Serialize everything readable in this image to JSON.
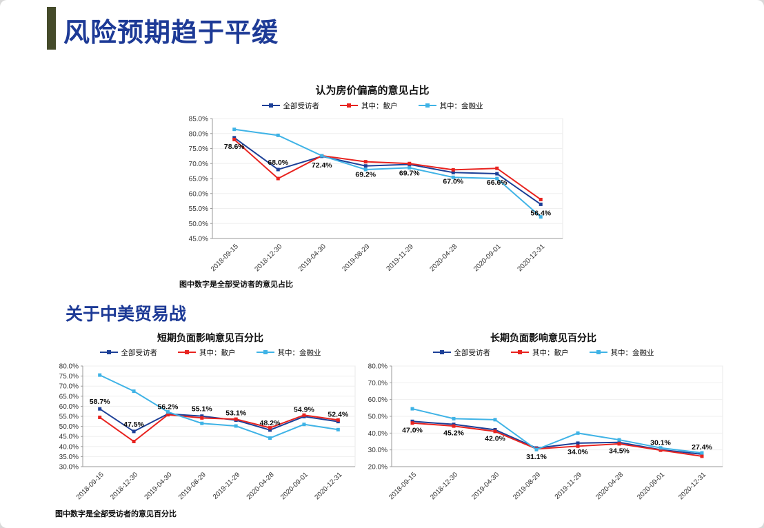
{
  "slide": {
    "title": "风险预期趋于平缓",
    "section_heading": "关于中美贸易战",
    "accent_color": "#454b2a",
    "title_color": "#1d3a96"
  },
  "chart_data": [
    {
      "type": "line",
      "title": "认为房价偏高的意见占比",
      "footnote": "图中数字是全部受访者的意见占比",
      "categories": [
        "2018-09-15",
        "2018-12-30",
        "2019-04-30",
        "2019-08-29",
        "2019-11-29",
        "2020-04-28",
        "2020-09-01",
        "2020-12-31"
      ],
      "ylim": [
        45,
        85
      ],
      "ystep": 5,
      "tick_format": "percent_1dp",
      "grid": false,
      "legend_position": "top",
      "series": [
        {
          "name": "全部受访者",
          "color": "#1c3f97",
          "values": [
            78.6,
            68.0,
            72.4,
            69.2,
            69.7,
            67.0,
            66.6,
            56.4
          ]
        },
        {
          "name": "其中：散户",
          "color": "#e8231f",
          "values": [
            78.0,
            65.0,
            72.6,
            70.6,
            70.0,
            67.9,
            68.4,
            58.0
          ]
        },
        {
          "name": "其中：金融业",
          "color": "#3fb3e6",
          "values": [
            81.4,
            79.4,
            72.6,
            68.0,
            68.6,
            65.4,
            65.0,
            52.2
          ]
        }
      ],
      "labels": [
        "78.6%",
        "68.0%",
        "72.4%",
        "69.2%",
        "69.7%",
        "67.0%",
        "66.6%",
        "56.4%"
      ]
    },
    {
      "type": "line",
      "title": "短期负面影响意见百分比",
      "footnote": "图中数字是全部受访者的意见百分比",
      "categories": [
        "2018-09-15",
        "2018-12-30",
        "2019-04-30",
        "2019-08-29",
        "2019-11-29",
        "2020-04-28",
        "2020-09-01",
        "2020-12-31"
      ],
      "ylim": [
        30,
        80
      ],
      "ystep": 5,
      "tick_format": "percent_1dp",
      "grid": false,
      "legend_position": "top",
      "series": [
        {
          "name": "全部受访者",
          "color": "#1c3f97",
          "values": [
            58.7,
            47.5,
            56.2,
            55.1,
            53.1,
            48.2,
            54.9,
            52.4
          ]
        },
        {
          "name": "其中：散户",
          "color": "#e8231f",
          "values": [
            54.5,
            42.5,
            55.8,
            54.2,
            53.6,
            49.3,
            55.6,
            53.2
          ]
        },
        {
          "name": "其中：金融业",
          "color": "#3fb3e6",
          "values": [
            75.5,
            67.5,
            57.2,
            51.5,
            50.2,
            44.2,
            51.0,
            48.4
          ]
        }
      ],
      "labels": [
        "58.7%",
        "47.5%",
        "56.2%",
        "55.1%",
        "53.1%",
        "48.2%",
        "54.9%",
        "52.4%"
      ]
    },
    {
      "type": "line",
      "title": "长期负面影响意见百分比",
      "footnote": "",
      "categories": [
        "2018-09-15",
        "2018-12-30",
        "2019-04-30",
        "2019-08-29",
        "2019-11-29",
        "2020-04-28",
        "2020-09-01",
        "2020-12-31"
      ],
      "ylim": [
        20,
        80
      ],
      "ystep": 10,
      "tick_format": "percent_1dp",
      "grid": false,
      "legend_position": "top",
      "series": [
        {
          "name": "全部受访者",
          "color": "#1c3f97",
          "values": [
            47.0,
            45.2,
            42.0,
            31.1,
            34.0,
            34.5,
            30.1,
            27.4
          ]
        },
        {
          "name": "其中：散户",
          "color": "#e8231f",
          "values": [
            46.0,
            44.2,
            41.0,
            30.6,
            32.2,
            33.6,
            29.8,
            26.2
          ]
        },
        {
          "name": "其中：金融业",
          "color": "#3fb3e6",
          "values": [
            54.5,
            48.6,
            48.0,
            30.2,
            40.0,
            36.0,
            31.2,
            28.2
          ]
        }
      ],
      "labels": [
        "47.0%",
        "45.2%",
        "42.0%",
        "31.1%",
        "34.0%",
        "34.5%",
        "30.1%",
        "27.4%"
      ]
    }
  ]
}
